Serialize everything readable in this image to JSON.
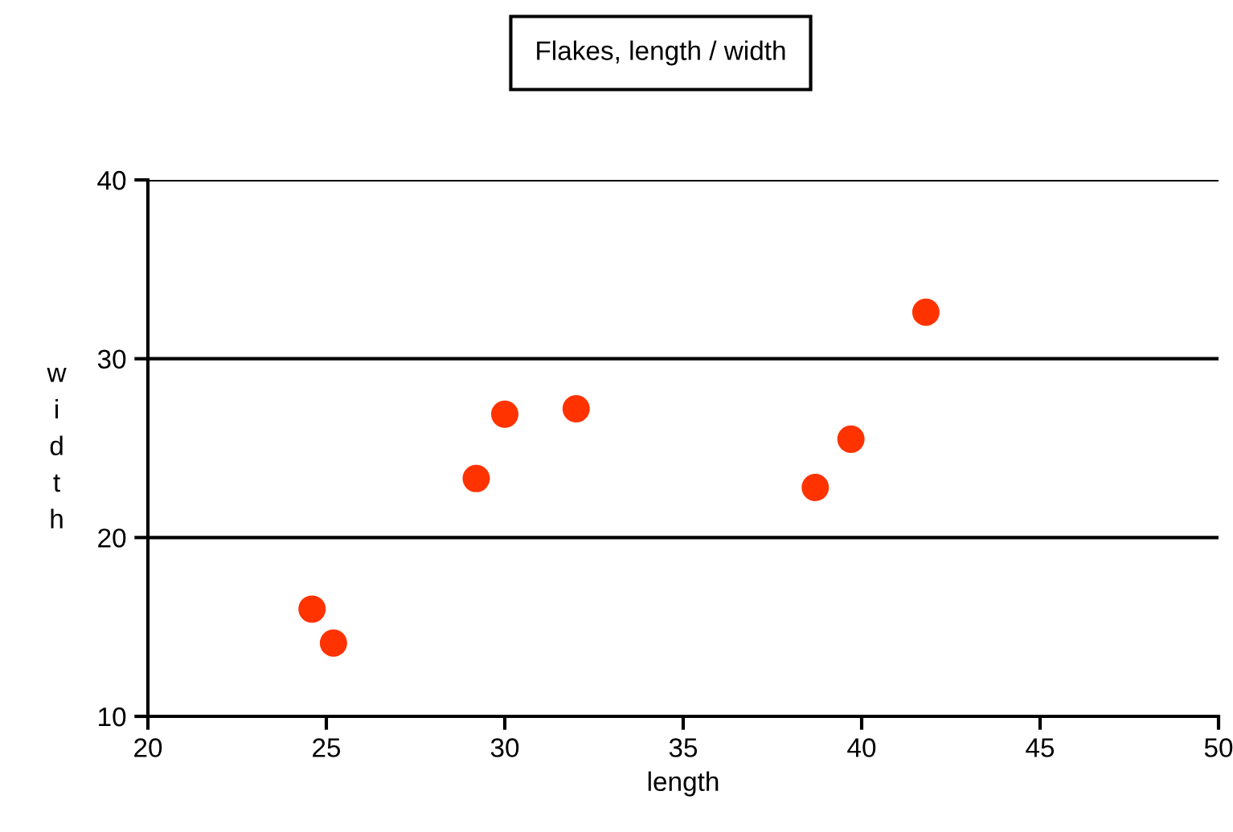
{
  "chart_data": {
    "type": "scatter",
    "title": "Flakes, length / width",
    "xlabel": "length",
    "ylabel": "width",
    "x": [
      24.6,
      25.2,
      29.2,
      30.0,
      32.0,
      38.7,
      39.7,
      41.8
    ],
    "values": [
      16.0,
      14.1,
      23.3,
      26.9,
      27.2,
      22.8,
      25.5,
      32.6
    ],
    "color": "#ff3300",
    "marker": "circle",
    "grid": "y",
    "xlim": [
      20,
      50
    ],
    "xticks": [
      20,
      25,
      30,
      35,
      40,
      45,
      50
    ],
    "ylim": [
      10,
      40
    ],
    "yticks": [
      10,
      20,
      30,
      40
    ]
  }
}
